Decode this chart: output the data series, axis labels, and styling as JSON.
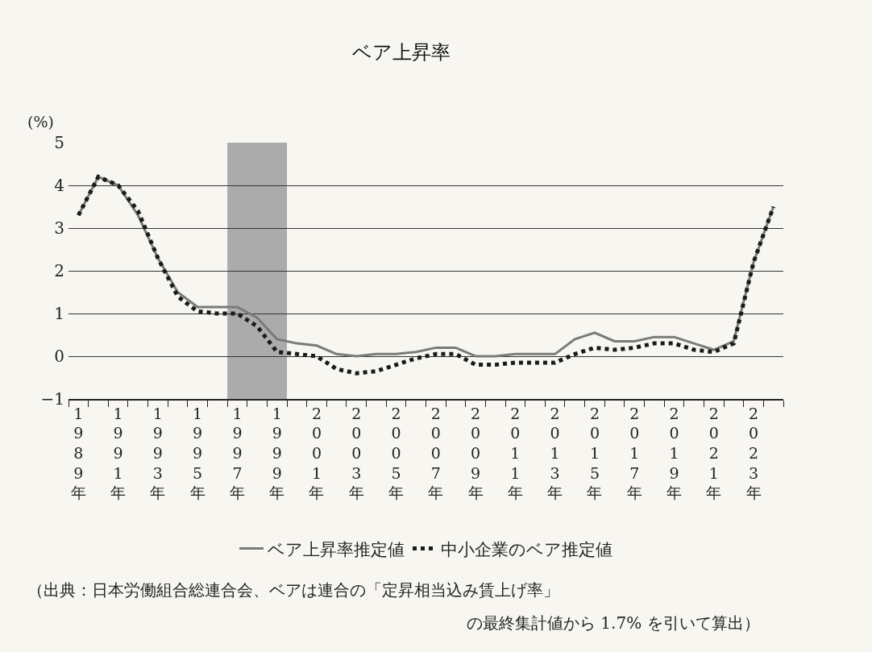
{
  "chart_data": {
    "type": "line",
    "title": "ベア上昇率",
    "ylabel": "(%)",
    "x": [
      1989,
      1990,
      1991,
      1992,
      1993,
      1994,
      1995,
      1996,
      1997,
      1998,
      1999,
      2000,
      2001,
      2002,
      2003,
      2004,
      2005,
      2006,
      2007,
      2008,
      2009,
      2010,
      2011,
      2012,
      2013,
      2014,
      2015,
      2016,
      2017,
      2018,
      2019,
      2020,
      2021,
      2022,
      2023,
      2024
    ],
    "series": [
      {
        "name": "ベア上昇率推定値",
        "color": "#7a7a7a",
        "line_style": "solid",
        "values": [
          3.3,
          4.2,
          4.0,
          3.3,
          2.3,
          1.5,
          1.15,
          1.15,
          1.15,
          0.9,
          0.4,
          0.3,
          0.25,
          0.05,
          0.0,
          0.05,
          0.05,
          0.1,
          0.2,
          0.2,
          0.0,
          0.0,
          0.05,
          0.05,
          0.05,
          0.4,
          0.55,
          0.35,
          0.35,
          0.45,
          0.45,
          0.3,
          0.15,
          0.35,
          2.2,
          3.5
        ]
      },
      {
        "name": "中小企業のベア推定値",
        "color": "#1a1a1a",
        "line_style": "dotted",
        "values": [
          3.3,
          4.2,
          4.0,
          3.4,
          2.3,
          1.4,
          1.05,
          1.0,
          1.0,
          0.7,
          0.1,
          0.05,
          0.0,
          -0.3,
          -0.4,
          -0.35,
          -0.2,
          -0.05,
          0.05,
          0.05,
          -0.2,
          -0.2,
          -0.15,
          -0.15,
          -0.15,
          0.05,
          0.2,
          0.15,
          0.2,
          0.3,
          0.3,
          0.15,
          0.1,
          0.3,
          2.2,
          3.5
        ]
      }
    ],
    "xlim": [
      1988.5,
      2024.5
    ],
    "xticks": [
      {
        "value": 1989,
        "label": "1989年"
      },
      {
        "value": 1991,
        "label": "1991年"
      },
      {
        "value": 1993,
        "label": "1993年"
      },
      {
        "value": 1995,
        "label": "1995年"
      },
      {
        "value": 1997,
        "label": "1997年"
      },
      {
        "value": 1999,
        "label": "1999年"
      },
      {
        "value": 2001,
        "label": "2001年"
      },
      {
        "value": 2003,
        "label": "2003年"
      },
      {
        "value": 2005,
        "label": "2005年"
      },
      {
        "value": 2007,
        "label": "2007年"
      },
      {
        "value": 2009,
        "label": "2009年"
      },
      {
        "value": 2011,
        "label": "2011年"
      },
      {
        "value": 2013,
        "label": "2013年"
      },
      {
        "value": 2015,
        "label": "2015年"
      },
      {
        "value": 2017,
        "label": "2017年"
      },
      {
        "value": 2019,
        "label": "2019年"
      },
      {
        "value": 2021,
        "label": "2021年"
      },
      {
        "value": 2023,
        "label": "2023年"
      },
      {
        "value": 1988.5,
        "label": null
      },
      {
        "value": 1989.5,
        "label": null
      },
      {
        "value": 1990.5,
        "label": null
      },
      {
        "value": 1991.5,
        "label": null
      },
      {
        "value": 1992.5,
        "label": null
      },
      {
        "value": 1993.5,
        "label": null
      },
      {
        "value": 1994.5,
        "label": null
      },
      {
        "value": 1995.5,
        "label": null
      },
      {
        "value": 1996.5,
        "label": null
      },
      {
        "value": 1997.5,
        "label": null
      },
      {
        "value": 1998.5,
        "label": null
      },
      {
        "value": 1999.5,
        "label": null
      },
      {
        "value": 2000.5,
        "label": null
      },
      {
        "value": 2001.5,
        "label": null
      },
      {
        "value": 2002.5,
        "label": null
      },
      {
        "value": 2003.5,
        "label": null
      },
      {
        "value": 2004.5,
        "label": null
      },
      {
        "value": 2005.5,
        "label": null
      },
      {
        "value": 2006.5,
        "label": null
      },
      {
        "value": 2007.5,
        "label": null
      },
      {
        "value": 2008.5,
        "label": null
      },
      {
        "value": 2009.5,
        "label": null
      },
      {
        "value": 2010.5,
        "label": null
      },
      {
        "value": 2011.5,
        "label": null
      },
      {
        "value": 2012.5,
        "label": null
      },
      {
        "value": 2013.5,
        "label": null
      },
      {
        "value": 2014.5,
        "label": null
      },
      {
        "value": 2015.5,
        "label": null
      },
      {
        "value": 2016.5,
        "label": null
      },
      {
        "value": 2017.5,
        "label": null
      },
      {
        "value": 2018.5,
        "label": null
      },
      {
        "value": 2019.5,
        "label": null
      },
      {
        "value": 2020.5,
        "label": null
      },
      {
        "value": 2021.5,
        "label": null
      },
      {
        "value": 2022.5,
        "label": null
      },
      {
        "value": 2023.5,
        "label": null
      },
      {
        "value": 2024.5,
        "label": null
      }
    ],
    "ylim": [
      -1,
      5
    ],
    "yticks": [
      {
        "value": -1,
        "label": "−1"
      },
      0,
      1,
      2,
      3,
      4,
      5
    ],
    "grid": "y",
    "legend": "bottom",
    "marker": "none",
    "bands": [
      {
        "axis": "x",
        "from": 1996.5,
        "to": 1999.5,
        "color": "#ababab"
      }
    ],
    "annotations": [
      "（出典：日本労働組合総連合会、ベアは連合の「定昇相当込み賃上げ率」",
      "の最終集計値から 1.7% を引いて算出）"
    ]
  }
}
